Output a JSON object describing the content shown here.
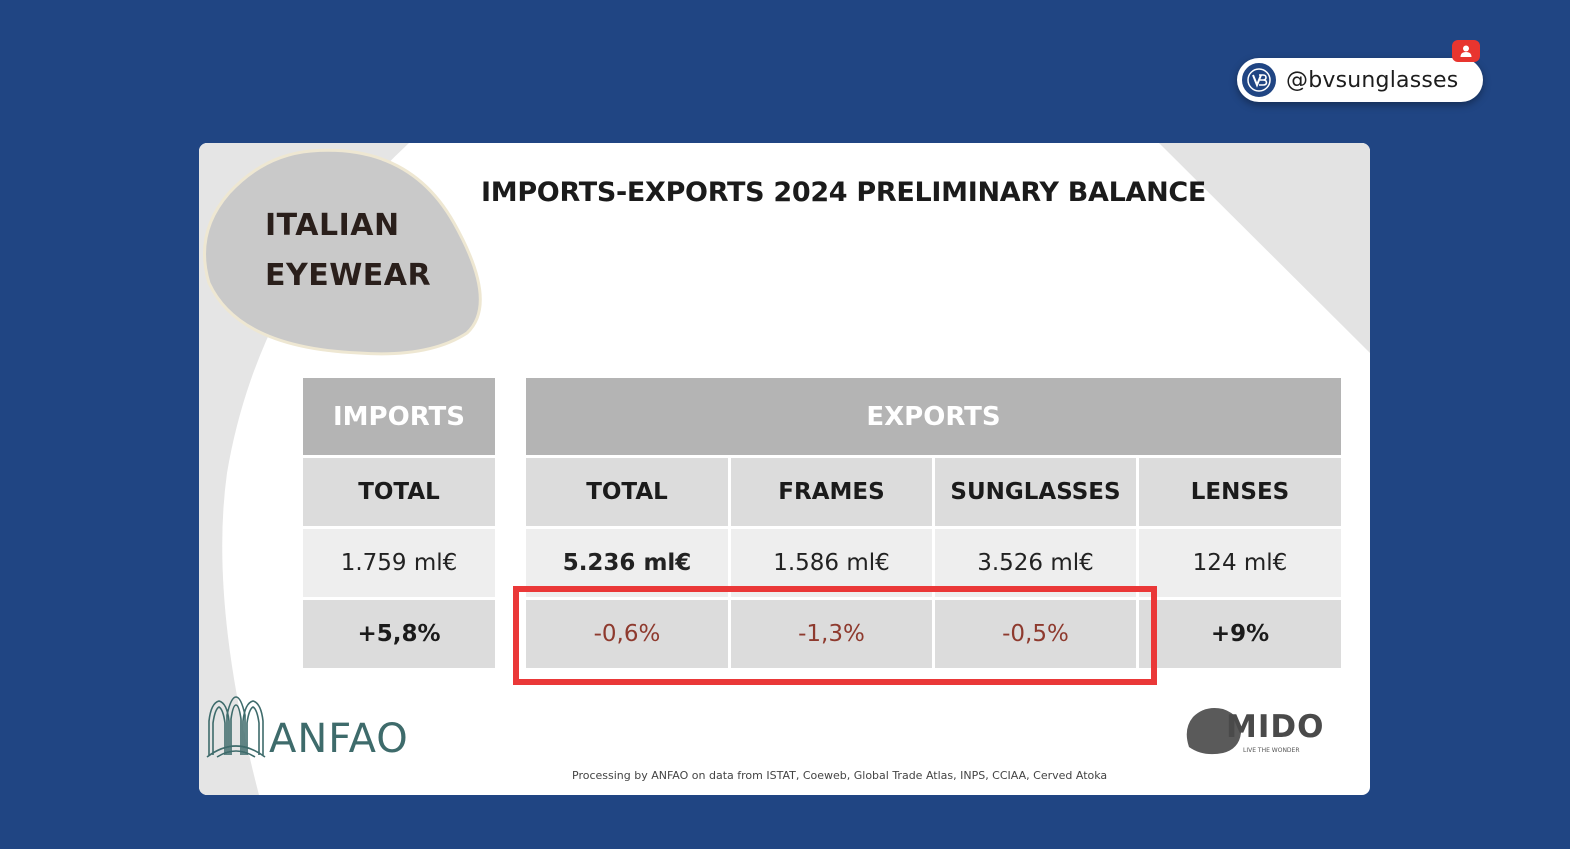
{
  "handle": {
    "text": "@bvsunglasses",
    "logo_icon": "bv-logo-icon",
    "notification_icon": "user-notification-icon"
  },
  "slide": {
    "title": "IMPORTS-EXPORTS 2024 PRELIMINARY BALANCE",
    "brand_line1": "ITALIAN",
    "brand_line2": "EYEWEAR",
    "imports": {
      "header": "IMPORTS",
      "col_label": "TOTAL",
      "value": "1.759 ml€",
      "change": "+5,8%"
    },
    "exports": {
      "header": "EXPORTS",
      "columns": [
        {
          "label": "TOTAL",
          "value": "5.236 ml€",
          "change": "-0,6%"
        },
        {
          "label": "FRAMES",
          "value": "1.586 ml€",
          "change": "-1,3%"
        },
        {
          "label": "SUNGLASSES",
          "value": "3.526 ml€",
          "change": "-0,5%"
        },
        {
          "label": "LENSES",
          "value": "124 ml€",
          "change": "+9%"
        }
      ]
    },
    "source_note": "Processing by ANFAO on data from ISTAT, Coeweb, Global Trade Atlas, INPS, CCIAA, Cerved Atoka",
    "anfao_logo_text": "ANFAO",
    "mido_logo_text": "MIDO",
    "mido_tagline": "LIVE THE WONDER"
  },
  "colors": {
    "background": "#204583",
    "header_dark": "#b4b4b4",
    "header_light": "#dcdcdc",
    "negative": "#8e3a2e",
    "highlight": "#ea3838"
  }
}
